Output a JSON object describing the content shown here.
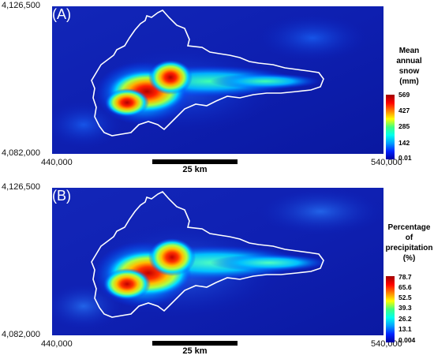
{
  "panels": [
    {
      "letter": "(A)",
      "coords": {
        "y_top": "4,126,500",
        "y_bottom": "4,082,000",
        "x_left": "440,000",
        "x_right": "540,000"
      },
      "scale_label": "25 km",
      "legend": {
        "title_lines": [
          "Mean",
          "annual",
          "snow",
          "(mm)"
        ],
        "ticks": [
          "569",
          "427",
          "285",
          "142",
          "0.01"
        ]
      }
    },
    {
      "letter": "(B)",
      "coords": {
        "y_top": "4,126,500",
        "y_bottom": "4,082,000",
        "x_left": "440,000",
        "x_right": "540,000"
      },
      "scale_label": "25 km",
      "legend": {
        "title_lines": [
          "Percentage",
          "of",
          "precipitation",
          "(%)"
        ],
        "ticks": [
          "78.7",
          "65.6",
          "52.5",
          "39.3",
          "26.2",
          "13.1",
          "0.004"
        ]
      }
    }
  ],
  "colors": {
    "background": "#0d1fb5",
    "colormap": [
      "#0000a0",
      "#0022ff",
      "#00a0ff",
      "#00ffee",
      "#40ff80",
      "#ffff00",
      "#ff8000",
      "#ff0000",
      "#a00000"
    ],
    "boundary": "#ffffff"
  }
}
